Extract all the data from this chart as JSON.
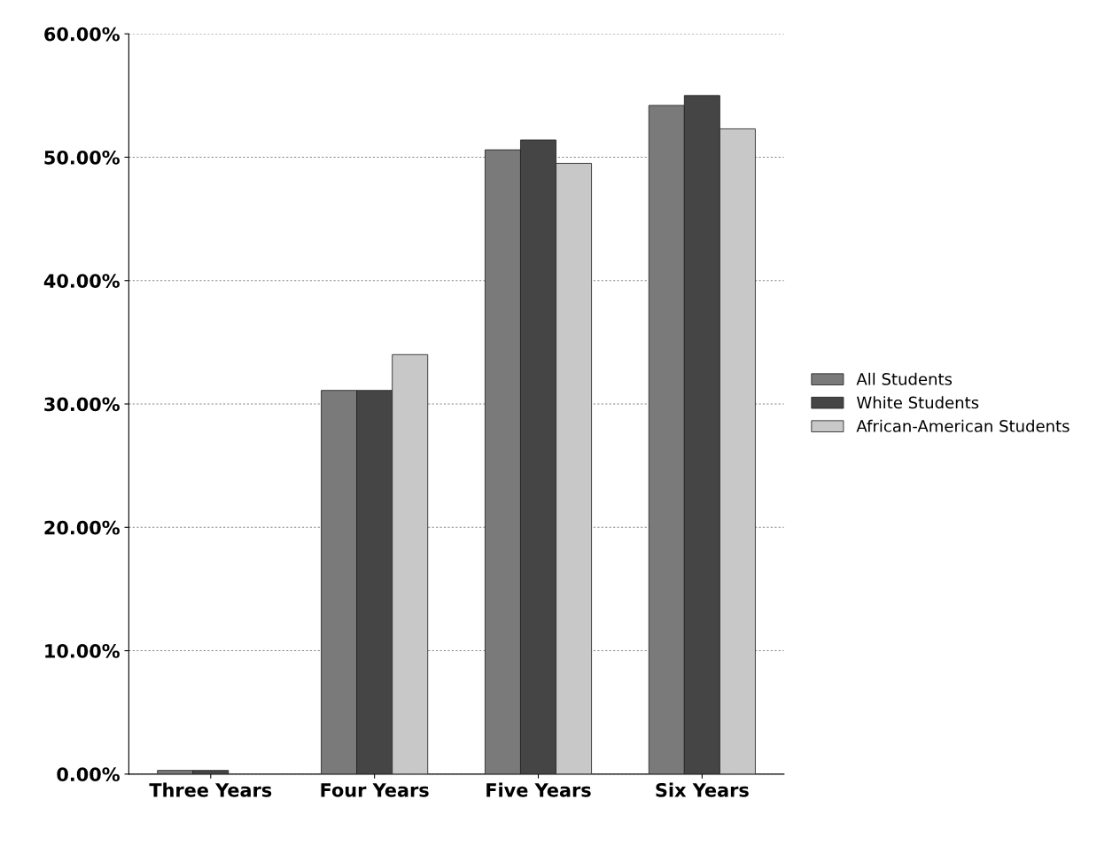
{
  "chart_data": {
    "type": "bar",
    "categories": [
      "Three Years",
      "Four Years",
      "Five Years",
      "Six Years"
    ],
    "series": [
      {
        "name": "All Students",
        "color": "#7a7a7a",
        "values": [
          0.3,
          31.1,
          50.6,
          54.2
        ]
      },
      {
        "name": "White Students",
        "color": "#454545",
        "values": [
          0.3,
          31.1,
          51.4,
          55.0
        ]
      },
      {
        "name": "African-American Students",
        "color": "#c8c8c8",
        "values": [
          null,
          34.0,
          49.5,
          52.3
        ]
      }
    ],
    "ylim": [
      0,
      60
    ],
    "yticks": [
      {
        "value": 0,
        "label": "0.00%"
      },
      {
        "value": 10,
        "label": "10.00%"
      },
      {
        "value": 20,
        "label": "20.00%"
      },
      {
        "value": 30,
        "label": "30.00%"
      },
      {
        "value": 40,
        "label": "40.00%"
      },
      {
        "value": 50,
        "label": "50.00%"
      },
      {
        "value": 60,
        "label": "60.00%"
      }
    ],
    "grid": "y",
    "legend": "right"
  }
}
